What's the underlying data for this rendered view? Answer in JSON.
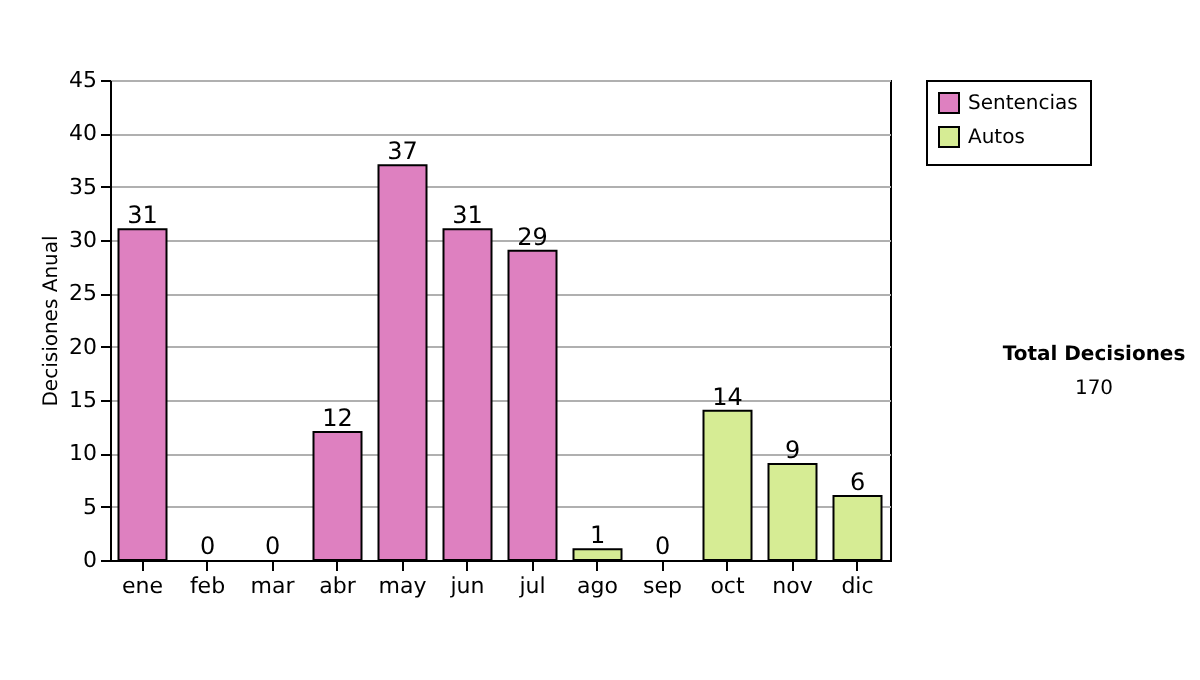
{
  "chart_data": {
    "type": "bar",
    "ylabel": "Decisiones Anual",
    "categories": [
      "ene",
      "feb",
      "mar",
      "abr",
      "may",
      "jun",
      "jul",
      "ago",
      "sep",
      "oct",
      "nov",
      "dic"
    ],
    "series": [
      {
        "name": "Sentencias",
        "color": "#de80c0",
        "values": [
          31,
          0,
          0,
          12,
          37,
          31,
          29,
          null,
          null,
          null,
          null,
          null
        ]
      },
      {
        "name": "Autos",
        "color": "#d6ec94",
        "values": [
          null,
          null,
          null,
          null,
          null,
          null,
          null,
          1,
          0,
          14,
          9,
          6
        ]
      }
    ],
    "ylim": [
      0,
      45
    ],
    "yticks": [
      0,
      5,
      10,
      15,
      20,
      25,
      30,
      35,
      40,
      45
    ],
    "grid": "y",
    "legend": "top right",
    "data_labels": true,
    "annotations": [
      "Total Decisiones",
      "170"
    ]
  }
}
